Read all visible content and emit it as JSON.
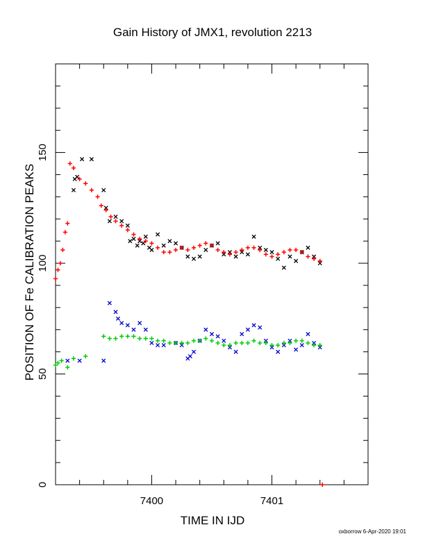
{
  "chart_data": {
    "type": "scatter",
    "title": "Gain History of JMX1, revolution 2213",
    "xlabel": "TIME IN IJD",
    "ylabel": "POSITION OF Fe CALIBRATION PEAKS",
    "xlim": [
      7399.2,
      7401.8
    ],
    "ylim": [
      0,
      190
    ],
    "x_ticks": [
      7400,
      7401
    ],
    "x_tick_labels": [
      "7400",
      "7401"
    ],
    "y_ticks": [
      0,
      50,
      100,
      150
    ],
    "y_tick_labels": [
      "0",
      "50",
      "100",
      "150"
    ],
    "grid": false,
    "legend": "none",
    "credit": "oxborrow  6-Apr-2020 19:01",
    "series": [
      {
        "marker": "x",
        "color": "#000000",
        "points": [
          [
            7399.35,
            133
          ],
          [
            7399.36,
            138
          ],
          [
            7399.38,
            139
          ],
          [
            7399.42,
            147
          ],
          [
            7399.5,
            147
          ],
          [
            7399.6,
            133
          ],
          [
            7399.62,
            125
          ],
          [
            7399.65,
            119
          ],
          [
            7399.7,
            121
          ],
          [
            7399.75,
            119
          ],
          [
            7399.8,
            117
          ],
          [
            7399.82,
            110
          ],
          [
            7399.85,
            111
          ],
          [
            7399.88,
            108
          ],
          [
            7399.9,
            110
          ],
          [
            7399.93,
            109
          ],
          [
            7399.95,
            112
          ],
          [
            7399.98,
            107
          ],
          [
            7400.0,
            106
          ],
          [
            7400.05,
            113
          ],
          [
            7400.1,
            108
          ],
          [
            7400.15,
            110
          ],
          [
            7400.2,
            109
          ],
          [
            7400.25,
            107
          ],
          [
            7400.3,
            103
          ],
          [
            7400.35,
            102
          ],
          [
            7400.4,
            103
          ],
          [
            7400.45,
            106
          ],
          [
            7400.5,
            108
          ],
          [
            7400.55,
            109
          ],
          [
            7400.6,
            104
          ],
          [
            7400.65,
            105
          ],
          [
            7400.7,
            103
          ],
          [
            7400.75,
            105
          ],
          [
            7400.8,
            104
          ],
          [
            7400.85,
            112
          ],
          [
            7400.9,
            107
          ],
          [
            7400.95,
            106
          ],
          [
            7401.0,
            105
          ],
          [
            7401.05,
            102
          ],
          [
            7401.1,
            98
          ],
          [
            7401.15,
            103
          ],
          [
            7401.2,
            101
          ],
          [
            7401.25,
            105
          ],
          [
            7401.3,
            107
          ],
          [
            7401.35,
            103
          ],
          [
            7401.4,
            100
          ]
        ]
      },
      {
        "marker": "+",
        "color": "#ff0000",
        "points": [
          [
            7399.2,
            93
          ],
          [
            7399.22,
            97
          ],
          [
            7399.24,
            100
          ],
          [
            7399.26,
            106
          ],
          [
            7399.28,
            114
          ],
          [
            7399.3,
            118
          ],
          [
            7399.32,
            145
          ],
          [
            7399.35,
            143
          ],
          [
            7399.4,
            138
          ],
          [
            7399.45,
            136
          ],
          [
            7399.5,
            133
          ],
          [
            7399.55,
            130
          ],
          [
            7399.58,
            126
          ],
          [
            7399.62,
            124
          ],
          [
            7399.66,
            121
          ],
          [
            7399.7,
            119
          ],
          [
            7399.75,
            117
          ],
          [
            7399.8,
            115
          ],
          [
            7399.85,
            113
          ],
          [
            7399.9,
            111
          ],
          [
            7399.95,
            110
          ],
          [
            7400.0,
            109
          ],
          [
            7400.05,
            107
          ],
          [
            7400.1,
            105
          ],
          [
            7400.15,
            105
          ],
          [
            7400.2,
            106
          ],
          [
            7400.25,
            107
          ],
          [
            7400.3,
            106
          ],
          [
            7400.35,
            107
          ],
          [
            7400.4,
            108
          ],
          [
            7400.45,
            109
          ],
          [
            7400.5,
            108
          ],
          [
            7400.55,
            106
          ],
          [
            7400.6,
            105
          ],
          [
            7400.65,
            104
          ],
          [
            7400.7,
            105
          ],
          [
            7400.75,
            106
          ],
          [
            7400.8,
            107
          ],
          [
            7400.85,
            107
          ],
          [
            7400.9,
            106
          ],
          [
            7400.95,
            104
          ],
          [
            7401.0,
            103
          ],
          [
            7401.05,
            104
          ],
          [
            7401.1,
            105
          ],
          [
            7401.15,
            106
          ],
          [
            7401.2,
            106
          ],
          [
            7401.25,
            105
          ],
          [
            7401.3,
            103
          ],
          [
            7401.35,
            102
          ],
          [
            7401.4,
            101
          ],
          [
            7401.42,
            0
          ]
        ]
      },
      {
        "marker": "x",
        "color": "#0000cc",
        "points": [
          [
            7399.3,
            56
          ],
          [
            7399.4,
            56
          ],
          [
            7399.6,
            56
          ],
          [
            7399.65,
            82
          ],
          [
            7399.7,
            78
          ],
          [
            7399.72,
            75
          ],
          [
            7399.75,
            73
          ],
          [
            7399.8,
            72
          ],
          [
            7399.85,
            70
          ],
          [
            7399.9,
            73
          ],
          [
            7399.95,
            70
          ],
          [
            7400.0,
            64
          ],
          [
            7400.05,
            63
          ],
          [
            7400.1,
            63
          ],
          [
            7400.2,
            64
          ],
          [
            7400.25,
            63
          ],
          [
            7400.3,
            57
          ],
          [
            7400.32,
            58
          ],
          [
            7400.35,
            60
          ],
          [
            7400.4,
            65
          ],
          [
            7400.45,
            70
          ],
          [
            7400.5,
            68
          ],
          [
            7400.55,
            67
          ],
          [
            7400.6,
            65
          ],
          [
            7400.65,
            62
          ],
          [
            7400.7,
            60
          ],
          [
            7400.75,
            68
          ],
          [
            7400.8,
            70
          ],
          [
            7400.85,
            72
          ],
          [
            7400.9,
            71
          ],
          [
            7400.95,
            65
          ],
          [
            7401.0,
            62
          ],
          [
            7401.05,
            60
          ],
          [
            7401.1,
            63
          ],
          [
            7401.15,
            65
          ],
          [
            7401.2,
            61
          ],
          [
            7401.25,
            63
          ],
          [
            7401.3,
            68
          ],
          [
            7401.35,
            64
          ],
          [
            7401.4,
            62
          ]
        ]
      },
      {
        "marker": "+",
        "color": "#00cc00",
        "points": [
          [
            7399.2,
            54
          ],
          [
            7399.22,
            55
          ],
          [
            7399.25,
            56
          ],
          [
            7399.3,
            53
          ],
          [
            7399.35,
            57
          ],
          [
            7399.45,
            58
          ],
          [
            7399.6,
            67
          ],
          [
            7399.65,
            66
          ],
          [
            7399.7,
            66
          ],
          [
            7399.75,
            67
          ],
          [
            7399.8,
            67
          ],
          [
            7399.85,
            67
          ],
          [
            7399.9,
            66
          ],
          [
            7399.95,
            66
          ],
          [
            7400.0,
            66
          ],
          [
            7400.05,
            65
          ],
          [
            7400.1,
            65
          ],
          [
            7400.15,
            64
          ],
          [
            7400.2,
            64
          ],
          [
            7400.25,
            64
          ],
          [
            7400.3,
            64
          ],
          [
            7400.35,
            65
          ],
          [
            7400.4,
            65
          ],
          [
            7400.45,
            66
          ],
          [
            7400.5,
            65
          ],
          [
            7400.55,
            64
          ],
          [
            7400.6,
            63
          ],
          [
            7400.65,
            63
          ],
          [
            7400.7,
            64
          ],
          [
            7400.75,
            64
          ],
          [
            7400.8,
            64
          ],
          [
            7400.85,
            65
          ],
          [
            7400.9,
            64
          ],
          [
            7400.95,
            64
          ],
          [
            7401.0,
            63
          ],
          [
            7401.05,
            63
          ],
          [
            7401.1,
            64
          ],
          [
            7401.15,
            64
          ],
          [
            7401.2,
            65
          ],
          [
            7401.25,
            65
          ],
          [
            7401.3,
            64
          ],
          [
            7401.35,
            63
          ],
          [
            7401.4,
            63
          ]
        ]
      }
    ]
  }
}
